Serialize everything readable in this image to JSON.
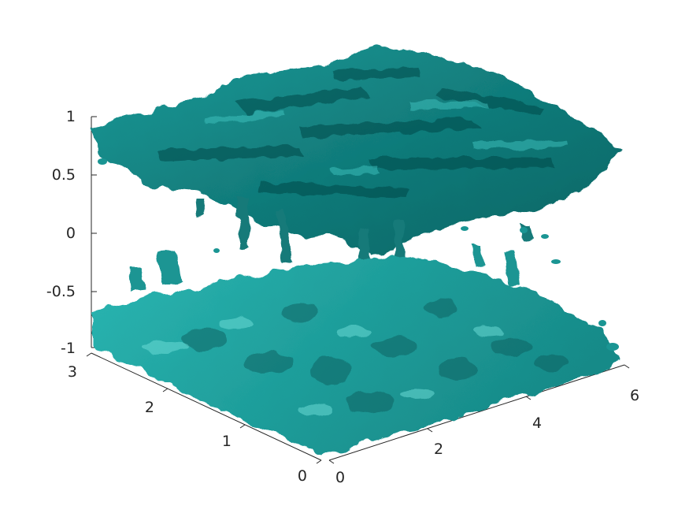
{
  "figure": {
    "type": "3d-isosurface",
    "surface_color": "#1b9e9e",
    "surface_dark": "#0b5c5c",
    "surface_light": "#52d0cc"
  },
  "axes": {
    "z_ticks": [
      "1",
      "0.5",
      "0",
      "-0.5",
      "-1"
    ],
    "y_ticks": [
      "3",
      "2",
      "1",
      "0"
    ],
    "x_ticks": [
      "0",
      "2",
      "4",
      "6"
    ],
    "z_range": [
      -1,
      1
    ],
    "y_range": [
      0,
      3
    ],
    "x_range": [
      0,
      6
    ]
  }
}
